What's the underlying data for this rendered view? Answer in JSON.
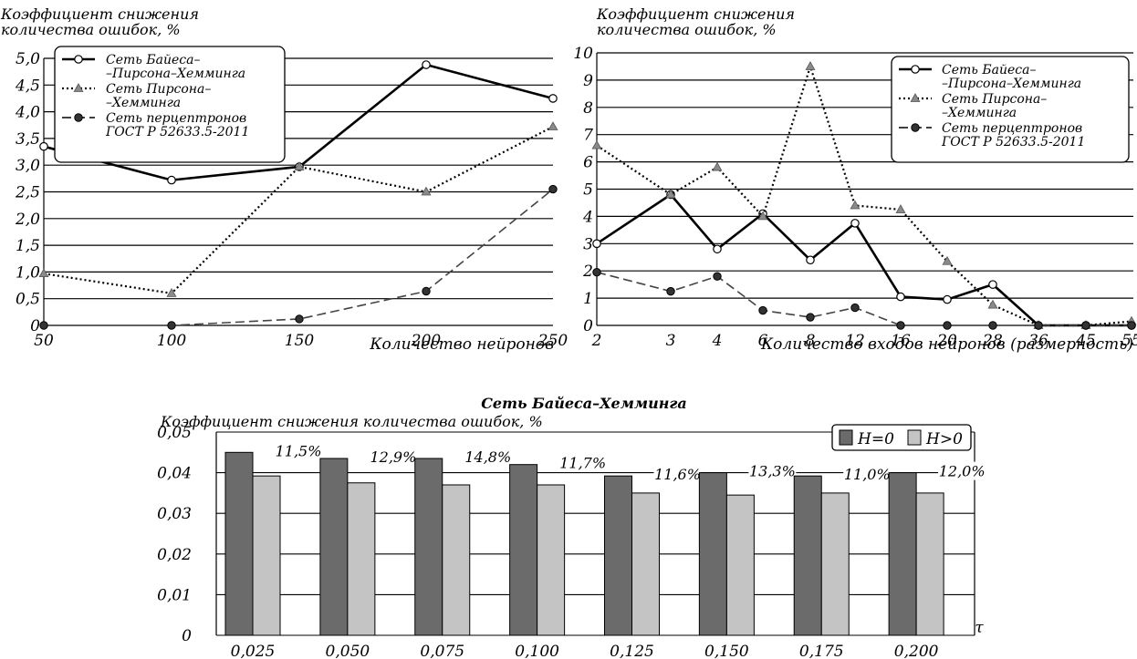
{
  "chart_data": [
    {
      "type": "line",
      "ylabel": "Коэффициент снижения\nколичества ошибок, %",
      "xlabel": "Количество нейронов",
      "categories": [
        "50",
        "100",
        "150",
        "200",
        "250"
      ],
      "yticks": [
        "0",
        "0,5",
        "1,0",
        "1,5",
        "2,0",
        "2,5",
        "3,0",
        "3,5",
        "4,0",
        "4,5",
        "5,0"
      ],
      "ylim": [
        0,
        5
      ],
      "grid": true,
      "legend_position": "top-left",
      "series": [
        {
          "name": "Сеть Байеса–\n–Пирсона–Хемминга",
          "style": "solid",
          "marker": "circle-open",
          "values": [
            3.35,
            2.72,
            2.97,
            4.88,
            4.25
          ]
        },
        {
          "name": "Сеть Пирсона–\n–Хемминга",
          "style": "dotted",
          "marker": "triangle-gray",
          "values": [
            0.97,
            0.6,
            2.97,
            2.5,
            3.72
          ]
        },
        {
          "name": "Сеть перцептронов\nГОСТ Р 52633.5-2011",
          "style": "dashed",
          "marker": "circle-dark",
          "values": [
            0.0,
            0.0,
            0.12,
            0.64,
            2.55
          ]
        }
      ]
    },
    {
      "type": "line",
      "ylabel": "Коэффициент снижения\nколичества ошибок, %",
      "xlabel": "Количество входов нейронов (размерность)",
      "categories": [
        "2",
        "3",
        "4",
        "6",
        "8",
        "12",
        "16",
        "20",
        "28",
        "36",
        "45",
        "55"
      ],
      "yticks": [
        "0",
        "1",
        "2",
        "3",
        "4",
        "5",
        "6",
        "7",
        "8",
        "9",
        "10"
      ],
      "ylim": [
        0,
        10
      ],
      "grid": true,
      "legend_position": "top-right",
      "series": [
        {
          "name": "Сеть Байеса–\n–Пирсона–Хемминга",
          "style": "solid",
          "marker": "circle-open",
          "values": [
            3.0,
            4.8,
            2.8,
            4.1,
            2.4,
            3.75,
            1.05,
            0.95,
            1.5,
            0.0,
            0.0,
            0.0
          ]
        },
        {
          "name": "Сеть Пирсона–\n–Хемминга",
          "style": "dotted",
          "marker": "triangle-gray",
          "values": [
            6.6,
            4.8,
            5.8,
            4.0,
            9.5,
            4.4,
            4.25,
            2.35,
            0.75,
            0.0,
            0.0,
            0.15
          ]
        },
        {
          "name": "Сеть перцептронов\nГОСТ Р 52633.5-2011",
          "style": "dashed",
          "marker": "circle-dark",
          "values": [
            1.95,
            1.25,
            1.8,
            0.55,
            0.3,
            0.65,
            0.0,
            0.0,
            0.0,
            0.0,
            0.0,
            0.0
          ]
        }
      ]
    },
    {
      "type": "bar",
      "title": "Сеть Байеса–Хемминга",
      "ylabel": "Коэффициент снижения количества ошибок, %",
      "xlabel": "τ",
      "categories": [
        "0,025",
        "0,050",
        "0,075",
        "0,100",
        "0,125",
        "0,150",
        "0,175",
        "0,200"
      ],
      "yticks": [
        "0",
        "0,01",
        "0,02",
        "0,03",
        "0,04",
        "0,05"
      ],
      "ylim": [
        0,
        0.05
      ],
      "grid": true,
      "legend_position": "top-right",
      "series": [
        {
          "name": "Н=0",
          "color": "#6b6b6b",
          "values": [
            0.045,
            0.0435,
            0.0435,
            0.042,
            0.0392,
            0.04,
            0.0392,
            0.04
          ]
        },
        {
          "name": "Н>0",
          "color": "#c4c4c4",
          "values": [
            0.0392,
            0.0375,
            0.037,
            0.037,
            0.035,
            0.0345,
            0.035,
            0.035
          ]
        }
      ],
      "annotations": [
        "11,5%",
        "12,9%",
        "14,8%",
        "11,7%",
        "11,6%",
        "13,3%",
        "11,0%",
        "12,0%"
      ]
    }
  ]
}
